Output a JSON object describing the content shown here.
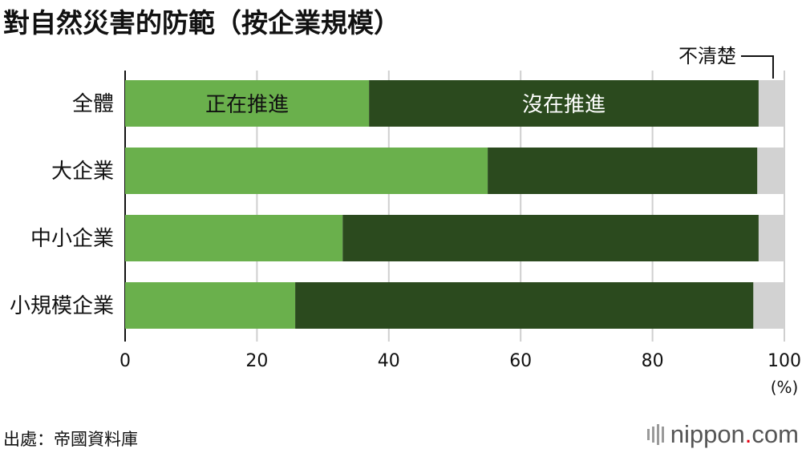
{
  "chart_data": {
    "type": "bar",
    "orientation": "horizontal",
    "stacked": true,
    "title": "對自然災害的防範（按企業規模）",
    "categories": [
      "全體",
      "大企業",
      "中小企業",
      "小規模企業"
    ],
    "series": [
      {
        "name": "正在推進",
        "values": [
          37.0,
          55.0,
          33.0,
          25.8
        ],
        "color": "#6ab04c"
      },
      {
        "name": "沒在推進",
        "values": [
          59.1,
          40.9,
          63.1,
          69.5
        ],
        "color": "#2b4a1e"
      },
      {
        "name": "不清楚",
        "values": [
          3.9,
          4.1,
          3.9,
          4.7
        ],
        "color": "#d2d2d2"
      }
    ],
    "xlim": [
      0,
      100
    ],
    "xticks": [
      "0",
      "20",
      "40",
      "60",
      "80",
      "100"
    ],
    "x_unit_label": "(%)",
    "grid": true,
    "legend": "inline"
  },
  "source": "出處：帝國資料庫",
  "logo": {
    "bars": "||||",
    "main": "nippon",
    "dot": ".",
    "tld": "com"
  }
}
